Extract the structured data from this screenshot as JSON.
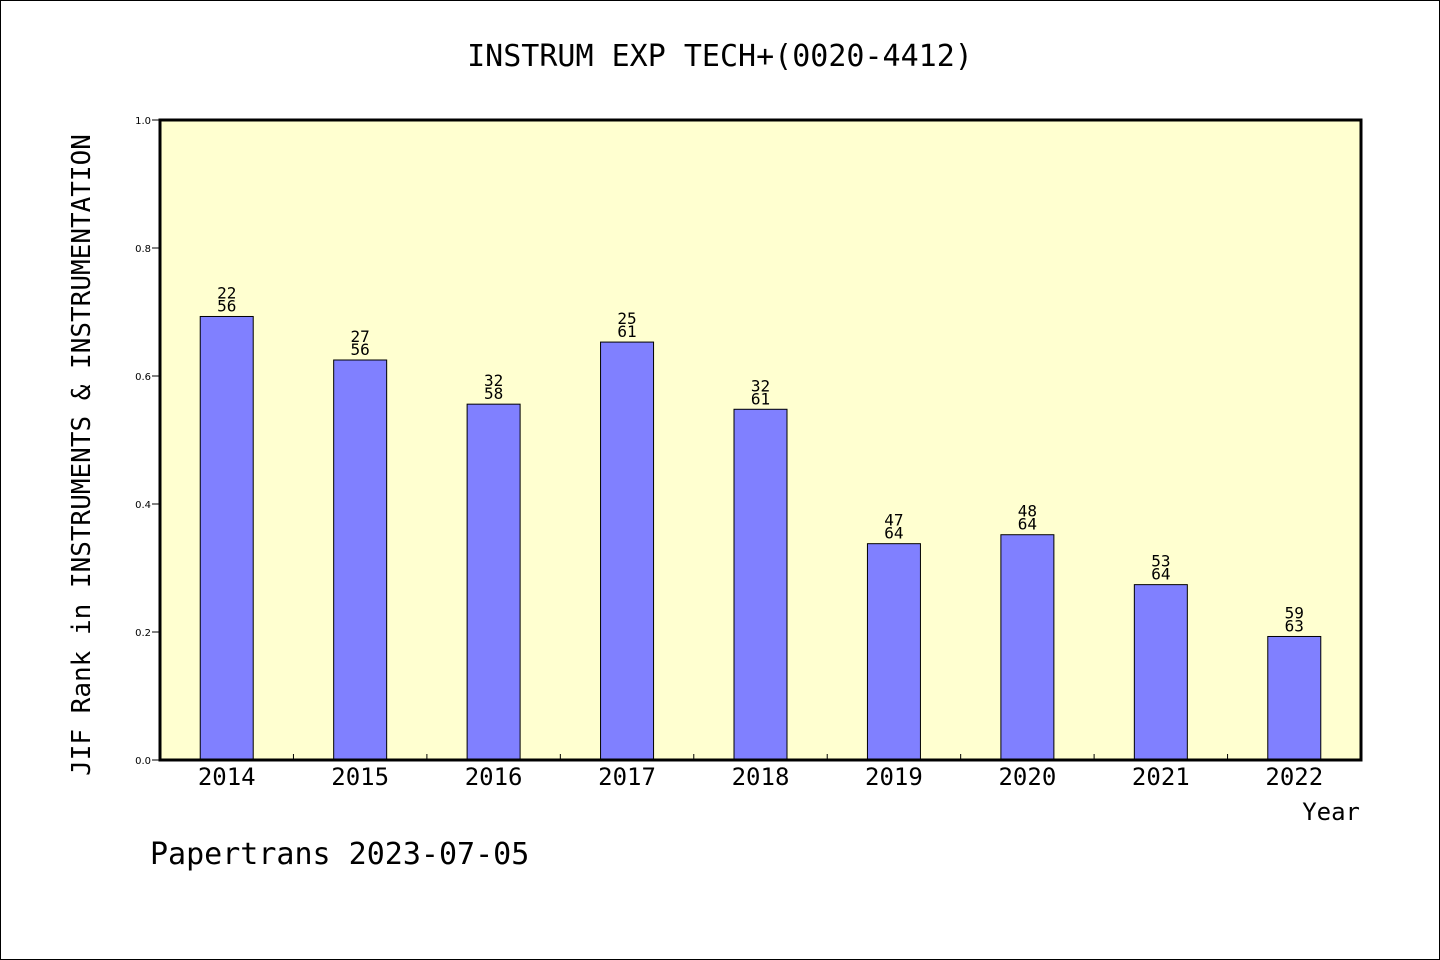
{
  "chart_data": {
    "type": "bar",
    "title": "INSTRUM EXP TECH+(0020-4412)",
    "ylabel": "JIF Rank in INSTRUMENTS & INSTRUMENTATION",
    "xlabel": "Year",
    "ylim": [
      0,
      1.0
    ],
    "yticks": [
      "0.0",
      "0.2",
      "0.4",
      "0.6",
      "0.8",
      "1.0"
    ],
    "categories": [
      "2014",
      "2015",
      "2016",
      "2017",
      "2018",
      "2019",
      "2020",
      "2021",
      "2022"
    ],
    "values": [
      0.693,
      0.625,
      0.556,
      0.653,
      0.548,
      0.338,
      0.352,
      0.274,
      0.193
    ],
    "labels_rank": [
      "22",
      "27",
      "32",
      "25",
      "32",
      "47",
      "48",
      "53",
      "59"
    ],
    "labels_total": [
      "56",
      "56",
      "58",
      "61",
      "61",
      "64",
      "64",
      "64",
      "63"
    ],
    "grid": false,
    "colors": {
      "bar": "#8080ff",
      "plot_bg": "#ffffd0",
      "axis": "#000000"
    }
  },
  "footer": "Papertrans 2023-07-05"
}
